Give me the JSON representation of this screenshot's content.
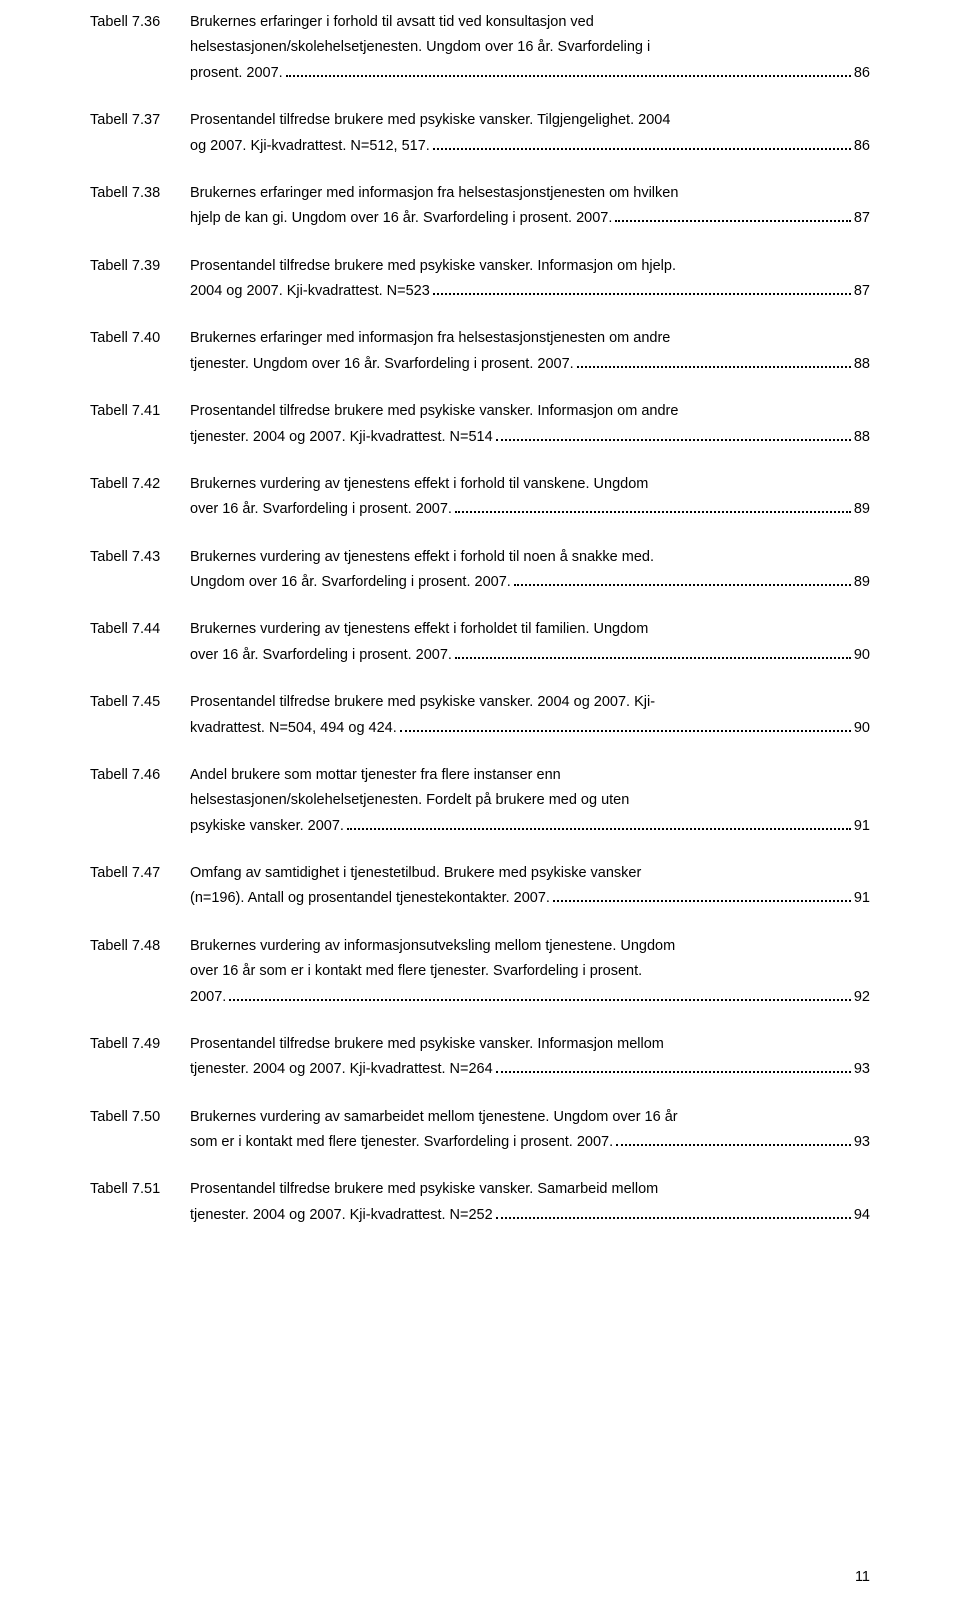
{
  "page_number": "11",
  "entries": [
    {
      "label": "Tabell 7.36",
      "lines": [
        "Brukernes erfaringer i forhold til avsatt tid ved konsultasjon ved",
        "helsestasjonen/skolehelsetjenesten. Ungdom over 16 år. Svarfordeling i"
      ],
      "last": "prosent. 2007.",
      "page": "86"
    },
    {
      "label": "Tabell 7.37",
      "lines": [
        "Prosentandel tilfredse brukere med psykiske vansker. Tilgjengelighet. 2004"
      ],
      "last": "og 2007. Kji-kvadrattest. N=512, 517.",
      "page": "86"
    },
    {
      "label": "Tabell 7.38",
      "lines": [
        "Brukernes erfaringer med informasjon fra helsestasjonstjenesten om hvilken"
      ],
      "last": "hjelp de kan gi. Ungdom over 16 år. Svarfordeling i prosent. 2007.",
      "page": "87"
    },
    {
      "label": "Tabell 7.39",
      "lines": [
        "Prosentandel tilfredse brukere med psykiske vansker. Informasjon om hjelp."
      ],
      "last": "2004 og 2007. Kji-kvadrattest. N=523",
      "page": "87"
    },
    {
      "label": "Tabell 7.40",
      "lines": [
        "Brukernes erfaringer med informasjon fra helsestasjonstjenesten om andre"
      ],
      "last": "tjenester. Ungdom over 16 år. Svarfordeling i prosent. 2007.",
      "page": "88"
    },
    {
      "label": "Tabell 7.41",
      "lines": [
        "Prosentandel tilfredse brukere med psykiske vansker. Informasjon om andre"
      ],
      "last": "tjenester. 2004 og 2007. Kji-kvadrattest. N=514",
      "page": "88"
    },
    {
      "label": "Tabell 7.42",
      "lines": [
        "Brukernes vurdering av tjenestens effekt i forhold til vanskene. Ungdom"
      ],
      "last": "over 16 år. Svarfordeling i prosent. 2007.",
      "page": "89"
    },
    {
      "label": "Tabell 7.43",
      "lines": [
        "Brukernes vurdering av tjenestens effekt i forhold til noen å snakke med."
      ],
      "last": "Ungdom over 16 år. Svarfordeling i prosent. 2007.",
      "page": "89"
    },
    {
      "label": "Tabell 7.44",
      "lines": [
        "Brukernes vurdering av tjenestens effekt i forholdet til familien. Ungdom"
      ],
      "last": "over 16 år. Svarfordeling i prosent. 2007.",
      "page": "90"
    },
    {
      "label": "Tabell 7.45",
      "lines": [
        "Prosentandel tilfredse brukere med psykiske vansker. 2004 og 2007. Kji-"
      ],
      "last": "kvadrattest. N=504, 494 og 424.",
      "page": "90"
    },
    {
      "label": "Tabell 7.46",
      "lines": [
        "Andel brukere som mottar tjenester fra flere instanser enn",
        "helsestasjonen/skolehelsetjenesten. Fordelt på brukere med og uten"
      ],
      "last": "psykiske vansker. 2007.",
      "page": "91"
    },
    {
      "label": "Tabell 7.47",
      "lines": [
        "Omfang av samtidighet i tjenestetilbud. Brukere med psykiske vansker"
      ],
      "last": "(n=196). Antall og prosentandel tjenestekontakter. 2007.",
      "page": "91"
    },
    {
      "label": "Tabell 7.48",
      "lines": [
        "Brukernes vurdering av informasjonsutveksling mellom tjenestene. Ungdom",
        "over 16 år som er i kontakt med flere tjenester. Svarfordeling i prosent."
      ],
      "last": "2007.",
      "page": "92"
    },
    {
      "label": "Tabell 7.49",
      "lines": [
        "Prosentandel tilfredse brukere med psykiske vansker. Informasjon mellom"
      ],
      "last": "tjenester. 2004 og 2007. Kji-kvadrattest. N=264",
      "page": "93"
    },
    {
      "label": "Tabell 7.50",
      "lines": [
        "Brukernes vurdering av samarbeidet mellom tjenestene. Ungdom over 16 år"
      ],
      "last": "som er i kontakt med flere tjenester. Svarfordeling i prosent. 2007.",
      "page": "93"
    },
    {
      "label": "Tabell 7.51",
      "lines": [
        "Prosentandel tilfredse brukere med psykiske vansker. Samarbeid mellom"
      ],
      "last": "tjenester. 2004 og 2007. Kji-kvadrattest. N=252",
      "page": "94"
    }
  ]
}
